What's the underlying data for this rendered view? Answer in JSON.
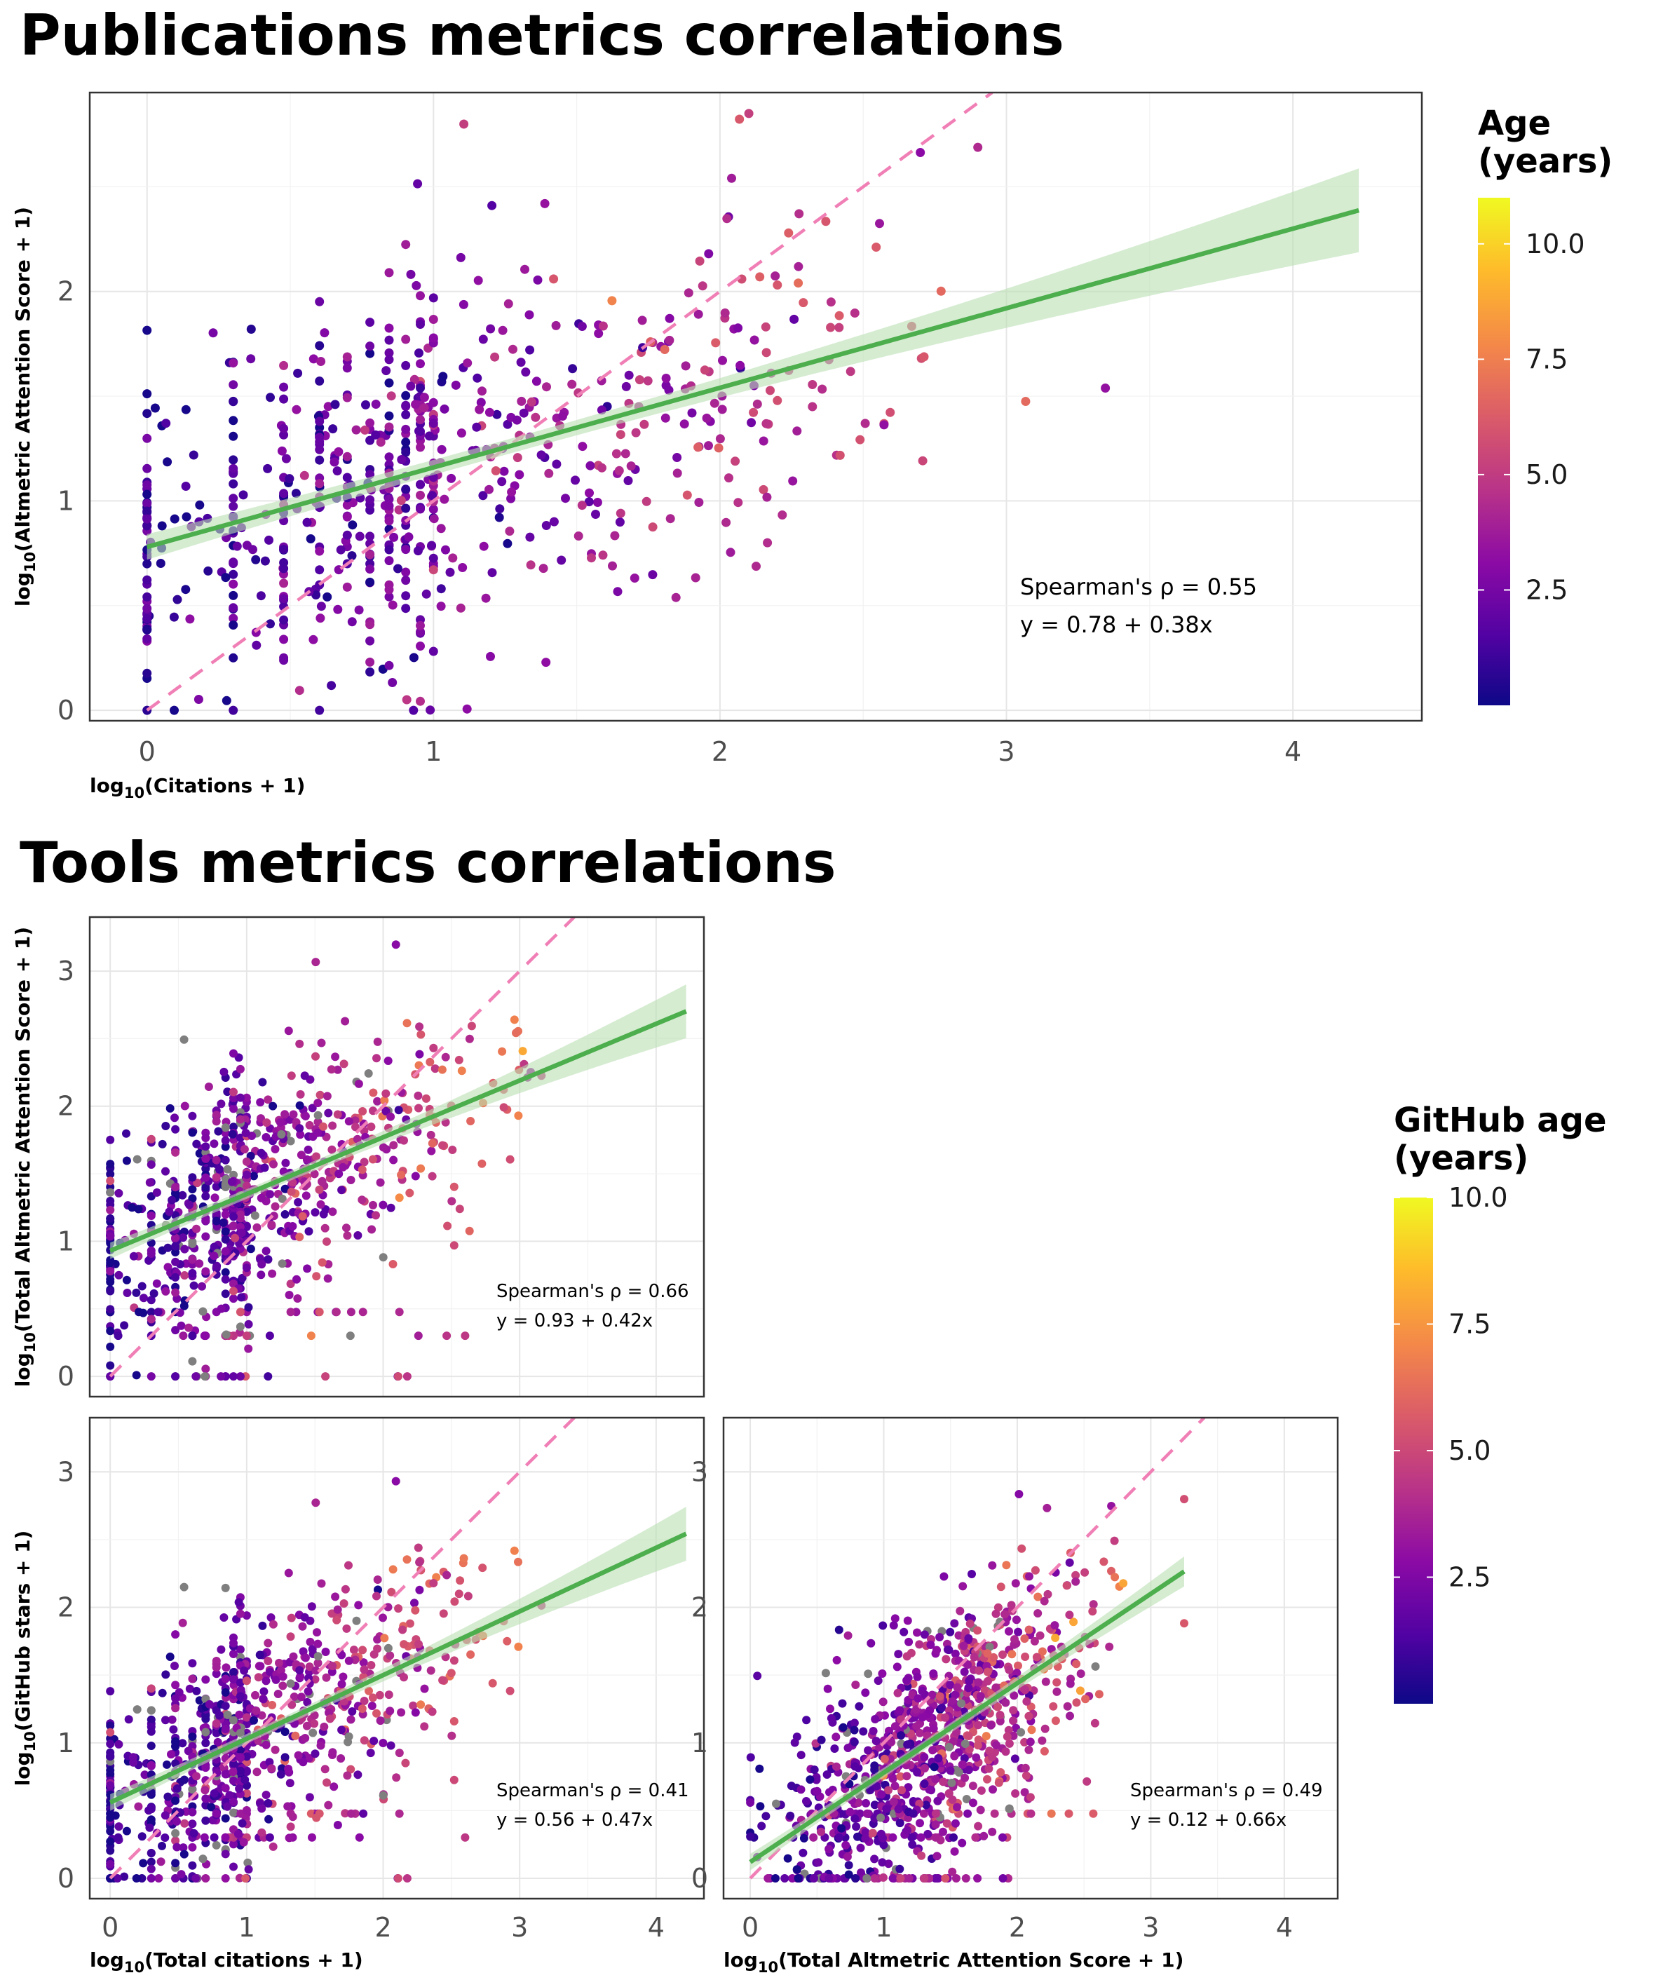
{
  "colors": {
    "fit_line": "#4cae4c",
    "ci_band": "#b9e0b3",
    "identity_line": "#f07fb6",
    "missing_age": "#7f7f7f",
    "plasma": [
      "#0d0887",
      "#5302a3",
      "#8b0aa5",
      "#b83289",
      "#db5c68",
      "#f48849",
      "#febc2a",
      "#f0f921"
    ]
  },
  "titles": {
    "publications": "Publications metrics correlations",
    "tools": "Tools metrics correlations"
  },
  "legends": {
    "age": {
      "title_line1": "Age",
      "title_line2": "(years)",
      "range": [
        0,
        11
      ],
      "ticks": [
        "2.5",
        "5.0",
        "7.5",
        "10.0"
      ]
    },
    "github_age": {
      "title_line1": "GitHub age",
      "title_line2": "(years)",
      "range": [
        0,
        10
      ],
      "ticks": [
        "2.5",
        "5.0",
        "7.5",
        "10.0"
      ]
    }
  },
  "chart_data": [
    {
      "id": "publications",
      "type": "scatter",
      "xlabel_pre": "log",
      "xlabel_sub": "10",
      "xlabel_post": "(Citations + 1)",
      "ylabel_pre": "log",
      "ylabel_sub": "10",
      "ylabel_post": "(Altmetric Attention Score + 1)",
      "xlim": [
        -0.2,
        4.45
      ],
      "ylim": [
        -0.05,
        2.95
      ],
      "xticks": [
        0,
        1,
        2,
        3,
        4
      ],
      "yticks": [
        0,
        1,
        2
      ],
      "grid": true,
      "fit": {
        "intercept": 0.78,
        "slope": 0.38,
        "x_range": [
          0,
          4.23
        ]
      },
      "identity_line": true,
      "annotation": [
        "Spearman's ρ = 0.55",
        "y = 0.78 + 0.38x"
      ],
      "points": {
        "n": 720,
        "x_max": 4.23,
        "y_max": 2.85,
        "age_max": 11,
        "missing_fraction": 0
      }
    },
    {
      "id": "tools_citations_vs_altmetric",
      "type": "scatter",
      "xlabel_pre": "",
      "xlabel_sub": "",
      "xlabel_post": "",
      "ylabel_pre": "log",
      "ylabel_sub": "10",
      "ylabel_post": "(Total Altmetric Attention Score + 1)",
      "xlim": [
        -0.15,
        4.35
      ],
      "ylim": [
        -0.15,
        3.4
      ],
      "xticks": [
        0,
        1,
        2,
        3,
        4
      ],
      "yticks": [
        0,
        1,
        2,
        3
      ],
      "grid": true,
      "fit": {
        "intercept": 0.93,
        "slope": 0.42,
        "x_range": [
          0,
          4.22
        ]
      },
      "identity_line": true,
      "annotation": [
        "Spearman's ρ = 0.66",
        "y = 0.93 + 0.42x"
      ],
      "points": {
        "n": 850,
        "x_max": 4.22,
        "y_max": 3.25,
        "age_max": 10,
        "missing_fraction": 0.05
      }
    },
    {
      "id": "tools_citations_vs_stars",
      "type": "scatter",
      "xlabel_pre": "log",
      "xlabel_sub": "10",
      "xlabel_post": "(Total citations + 1)",
      "ylabel_pre": "log",
      "ylabel_sub": "10",
      "ylabel_post": "(GitHub stars + 1)",
      "xlim": [
        -0.15,
        4.35
      ],
      "ylim": [
        -0.15,
        3.4
      ],
      "xticks": [
        0,
        1,
        2,
        3,
        4
      ],
      "yticks": [
        0,
        1,
        2,
        3
      ],
      "grid": true,
      "fit": {
        "intercept": 0.56,
        "slope": 0.47,
        "x_range": [
          0,
          4.22
        ]
      },
      "identity_line": true,
      "annotation": [
        "Spearman's ρ = 0.41",
        "y = 0.56 + 0.47x"
      ],
      "points": {
        "n": 900,
        "x_max": 4.22,
        "y_max": 3.1,
        "age_max": 10,
        "missing_fraction": 0.05
      }
    },
    {
      "id": "tools_altmetric_vs_stars",
      "type": "scatter",
      "xlabel_pre": "log",
      "xlabel_sub": "10",
      "xlabel_post": "(Total Altmetric Attention Score + 1)",
      "ylabel_pre": "",
      "ylabel_sub": "",
      "ylabel_post": "",
      "xlim": [
        -0.2,
        4.4
      ],
      "ylim": [
        -0.15,
        3.4
      ],
      "xticks": [
        0,
        1,
        2,
        3,
        4
      ],
      "yticks": [
        0,
        1,
        2,
        3
      ],
      "grid": true,
      "fit": {
        "intercept": 0.12,
        "slope": 0.66,
        "x_range": [
          0,
          3.25
        ]
      },
      "identity_line": true,
      "annotation": [
        "Spearman's ρ = 0.49",
        "y = 0.12 + 0.66x"
      ],
      "points": {
        "n": 1000,
        "x_max": 3.25,
        "y_max": 3.08,
        "age_max": 10,
        "missing_fraction": 0.05
      }
    }
  ]
}
